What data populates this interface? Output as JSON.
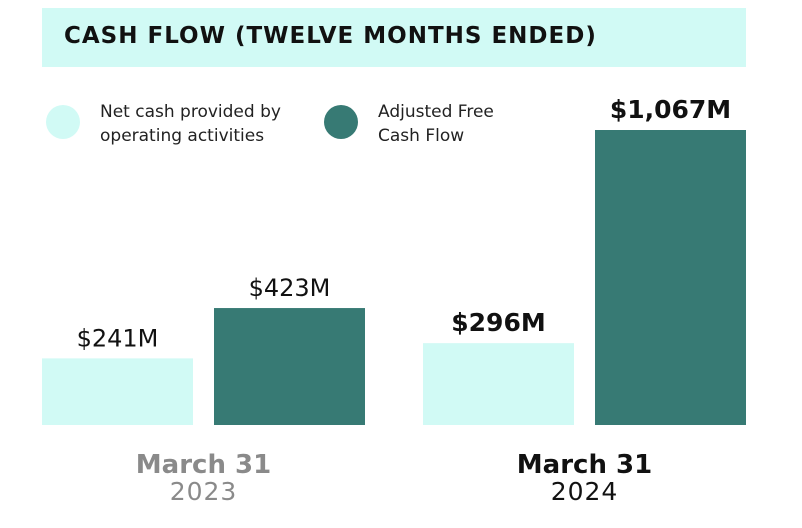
{
  "colors": {
    "operating": "#d1faf5",
    "free": "#377a74",
    "muted": "#8a8a8a",
    "dark": "#111111"
  },
  "chart_data": {
    "type": "bar",
    "title": "CASH FLOW (TWELVE MONTHS ENDED)",
    "xlabel": "",
    "ylabel": "",
    "ylim": [
      0,
      1100
    ],
    "grid": false,
    "legend_position": "top-left",
    "categories": [
      {
        "month": "March 31",
        "year": "2023",
        "emphasis": false
      },
      {
        "month": "March 31",
        "year": "2024",
        "emphasis": true
      }
    ],
    "series": [
      {
        "name": "Net cash provided by\noperating activities",
        "color_key": "operating",
        "values": [
          241,
          296
        ],
        "labels": [
          "$241M",
          "$296M"
        ]
      },
      {
        "name": "Adjusted Free\nCash Flow",
        "color_key": "free",
        "values": [
          423,
          1067
        ],
        "labels": [
          "$423M",
          "$1,067M"
        ]
      }
    ]
  }
}
